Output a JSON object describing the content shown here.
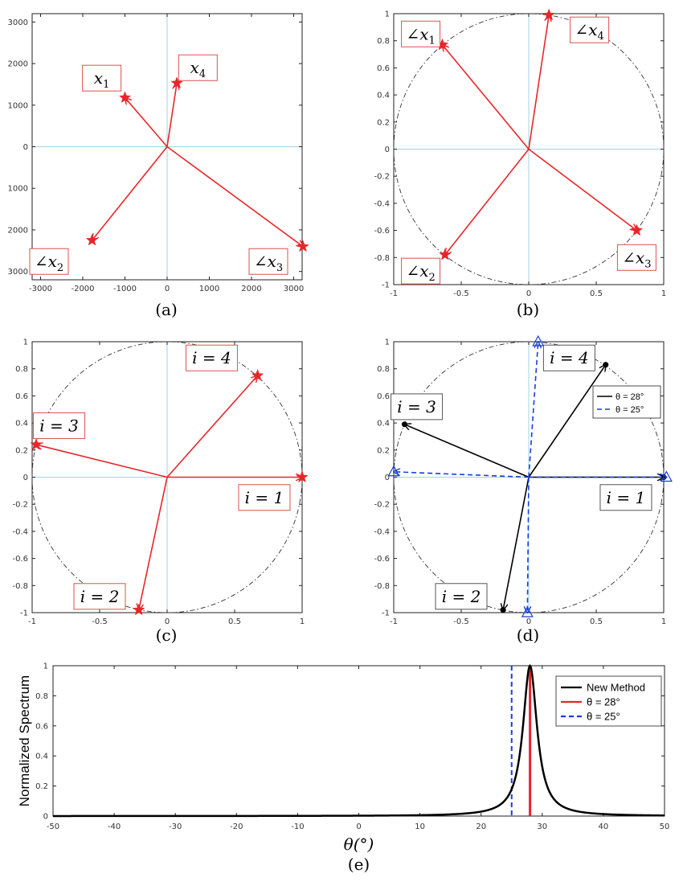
{
  "colors": {
    "red": "#e8262a",
    "black": "#000000",
    "blue": "#1a3fd6",
    "axis_line": "#9fd3e6",
    "circle": "#333333",
    "box_border_red": "#d9534f",
    "box_border_gray": "#555555"
  },
  "chart_data": [
    {
      "id": "a",
      "type": "scatter",
      "caption": "(a)",
      "xlim": [
        -3200,
        3200
      ],
      "ylim": [
        -3200,
        3200
      ],
      "xticks": [
        -3000,
        -2000,
        -1000,
        0,
        1000,
        2000,
        3000
      ],
      "xtick_labels": [
        "-3000",
        "-2000",
        "-1000",
        "0",
        "1000",
        "2000",
        "3000"
      ],
      "yticks": [
        3000,
        2000,
        1000,
        0,
        -1000,
        -2000,
        -3000
      ],
      "ytick_labels": [
        "3000",
        "2000",
        "1000",
        "0",
        "1000",
        "2000",
        "3000"
      ],
      "unit_circle": false,
      "vectors": [
        {
          "x": -1000,
          "y": 1180,
          "marker": "star",
          "color": "red"
        },
        {
          "x": 230,
          "y": 1530,
          "marker": "star",
          "color": "red"
        },
        {
          "x": -1780,
          "y": -2250,
          "marker": "star",
          "color": "red"
        },
        {
          "x": 3220,
          "y": -2400,
          "marker": "star",
          "color": "red"
        }
      ],
      "annotations": [
        {
          "base": "x",
          "sub": "1",
          "prefix": "",
          "x": -1550,
          "y": 1650,
          "border": "red"
        },
        {
          "base": "x",
          "sub": "4",
          "prefix": "",
          "x": 730,
          "y": 1900,
          "border": "red"
        },
        {
          "base": "x",
          "sub": "2",
          "prefix": "∠",
          "x": -2800,
          "y": -2760,
          "border": "red"
        },
        {
          "base": "x",
          "sub": "3",
          "prefix": "∠",
          "x": 2400,
          "y": -2760,
          "border": "red"
        }
      ]
    },
    {
      "id": "b",
      "type": "scatter",
      "caption": "(b)",
      "xlim": [
        -1,
        1
      ],
      "ylim": [
        -1,
        1
      ],
      "xticks": [
        -1,
        -0.5,
        0,
        0.5,
        1
      ],
      "xtick_labels": [
        "-1",
        "-0.5",
        "0",
        "0.5",
        "1"
      ],
      "yticks": [
        1,
        0.8,
        0.6,
        0.4,
        0.2,
        0,
        -0.2,
        -0.4,
        -0.6,
        -0.8,
        -1
      ],
      "ytick_labels": [
        "1",
        "0.8",
        "0.6",
        "0.4",
        "0.2",
        "0",
        "-0.2",
        "-0.4",
        "-0.6",
        "-0.8",
        "-1"
      ],
      "unit_circle": true,
      "vectors": [
        {
          "x": -0.64,
          "y": 0.77,
          "marker": "star",
          "color": "red"
        },
        {
          "x": 0.15,
          "y": 0.99,
          "marker": "star",
          "color": "red"
        },
        {
          "x": -0.62,
          "y": -0.78,
          "marker": "star",
          "color": "red"
        },
        {
          "x": 0.8,
          "y": -0.6,
          "marker": "star",
          "color": "red"
        }
      ],
      "annotations": [
        {
          "base": "x",
          "sub": "1",
          "prefix": "∠",
          "x": -0.8,
          "y": 0.85,
          "border": "red"
        },
        {
          "base": "x",
          "sub": "4",
          "prefix": "∠",
          "x": 0.45,
          "y": 0.88,
          "border": "red"
        },
        {
          "base": "x",
          "sub": "2",
          "prefix": "∠",
          "x": -0.8,
          "y": -0.9,
          "border": "red"
        },
        {
          "base": "x",
          "sub": "3",
          "prefix": "∠",
          "x": 0.8,
          "y": -0.8,
          "border": "red"
        }
      ]
    },
    {
      "id": "c",
      "type": "scatter",
      "caption": "(c)",
      "xlim": [
        -1,
        1
      ],
      "ylim": [
        -1,
        1
      ],
      "xticks": [
        -1,
        -0.5,
        0,
        0.5,
        1
      ],
      "xtick_labels": [
        "-1",
        "-0.5",
        "0",
        "0.5",
        "1"
      ],
      "yticks": [
        1,
        0.8,
        0.6,
        0.4,
        0.2,
        0,
        -0.2,
        -0.4,
        -0.6,
        -0.8,
        -1
      ],
      "ytick_labels": [
        "1",
        "0.8",
        "0.6",
        "0.4",
        "0.2",
        "0",
        "-0.2",
        "-0.4",
        "-0.6",
        "-0.8",
        "-1"
      ],
      "unit_circle": true,
      "vectors": [
        {
          "x": 1.0,
          "y": 0.0,
          "marker": "star",
          "color": "red"
        },
        {
          "x": -0.21,
          "y": -0.98,
          "marker": "star",
          "color": "red"
        },
        {
          "x": -0.97,
          "y": 0.24,
          "marker": "star",
          "color": "red"
        },
        {
          "x": 0.67,
          "y": 0.75,
          "marker": "star",
          "color": "red"
        }
      ],
      "annotations": [
        {
          "text": "i = 4",
          "x": 0.33,
          "y": 0.88,
          "border": "red"
        },
        {
          "text": "i = 3",
          "x": -0.8,
          "y": 0.38,
          "border": "red"
        },
        {
          "text": "i = 1",
          "x": 0.72,
          "y": -0.15,
          "border": "red"
        },
        {
          "text": "i = 2",
          "x": -0.5,
          "y": -0.88,
          "border": "red"
        }
      ]
    },
    {
      "id": "d",
      "type": "scatter",
      "caption": "(d)",
      "xlim": [
        -1,
        1
      ],
      "ylim": [
        -1,
        1
      ],
      "xticks": [
        -1,
        -0.5,
        0,
        0.5,
        1
      ],
      "xtick_labels": [
        "-1",
        "-0.5",
        "0",
        "0.5",
        "1"
      ],
      "yticks": [
        1,
        0.8,
        0.6,
        0.4,
        0.2,
        0,
        -0.2,
        -0.4,
        -0.6,
        -0.8,
        -1
      ],
      "ytick_labels": [
        "1",
        "0.8",
        "0.6",
        "0.4",
        "0.2",
        "0",
        "-0.2",
        "-0.4",
        "-0.6",
        "-0.8",
        "-1"
      ],
      "unit_circle": true,
      "vectors": [
        {
          "x": 1.0,
          "y": 0.0,
          "marker": "dot",
          "color": "black",
          "series": 0
        },
        {
          "x": 0.57,
          "y": 0.83,
          "marker": "dot",
          "color": "black",
          "series": 0
        },
        {
          "x": -0.92,
          "y": 0.39,
          "marker": "dot",
          "color": "black",
          "series": 0
        },
        {
          "x": -0.19,
          "y": -0.98,
          "marker": "dot",
          "color": "black",
          "series": 0
        },
        {
          "x": 1.02,
          "y": 0.0,
          "marker": "triangle",
          "color": "blue",
          "series": 1
        },
        {
          "x": 0.07,
          "y": 1.0,
          "marker": "triangle",
          "color": "blue",
          "series": 1
        },
        {
          "x": -1.0,
          "y": 0.04,
          "marker": "triangle",
          "color": "blue",
          "series": 1
        },
        {
          "x": -0.01,
          "y": -1.0,
          "marker": "triangle",
          "color": "blue",
          "series": 1
        }
      ],
      "series": [
        {
          "name": "θ = 28°",
          "color": "black",
          "dash": "none"
        },
        {
          "name": "θ = 25°",
          "color": "blue",
          "dash": "6,4"
        }
      ],
      "annotations": [
        {
          "text": "i = 4",
          "x": 0.3,
          "y": 0.88,
          "border": "gray"
        },
        {
          "text": "i = 3",
          "x": -0.83,
          "y": 0.52,
          "border": "gray"
        },
        {
          "text": "i = 1",
          "x": 0.72,
          "y": -0.15,
          "border": "gray"
        },
        {
          "text": "i = 2",
          "x": -0.5,
          "y": -0.88,
          "border": "gray"
        }
      ]
    },
    {
      "id": "e",
      "type": "line",
      "caption": "(e)",
      "xlabel": "θ(°)",
      "ylabel": "Normalized Spectrum",
      "xlim": [
        -50,
        50
      ],
      "ylim": [
        0,
        1
      ],
      "xticks": [
        -50,
        -40,
        -30,
        -20,
        -10,
        0,
        10,
        20,
        30,
        40,
        50
      ],
      "xtick_labels": [
        "-50",
        "-40",
        "-30",
        "-20",
        "-10",
        "0",
        "10",
        "20",
        "30",
        "40",
        "50"
      ],
      "yticks": [
        1,
        0.8,
        0.6,
        0.4,
        0.2,
        0
      ],
      "ytick_labels": [
        "1",
        "0.8",
        "0.6",
        "0.4",
        "0.2",
        "0"
      ],
      "series": [
        {
          "name": "New Method",
          "color": "black",
          "dash": "none",
          "peak": 28,
          "width": 1.4
        },
        {
          "name": "θ = 28°",
          "color": "red",
          "dash": "none",
          "vline": 28
        },
        {
          "name": "θ = 25°",
          "color": "blue",
          "dash": "6,4",
          "vline": 25
        }
      ],
      "legend": "top-right"
    }
  ]
}
